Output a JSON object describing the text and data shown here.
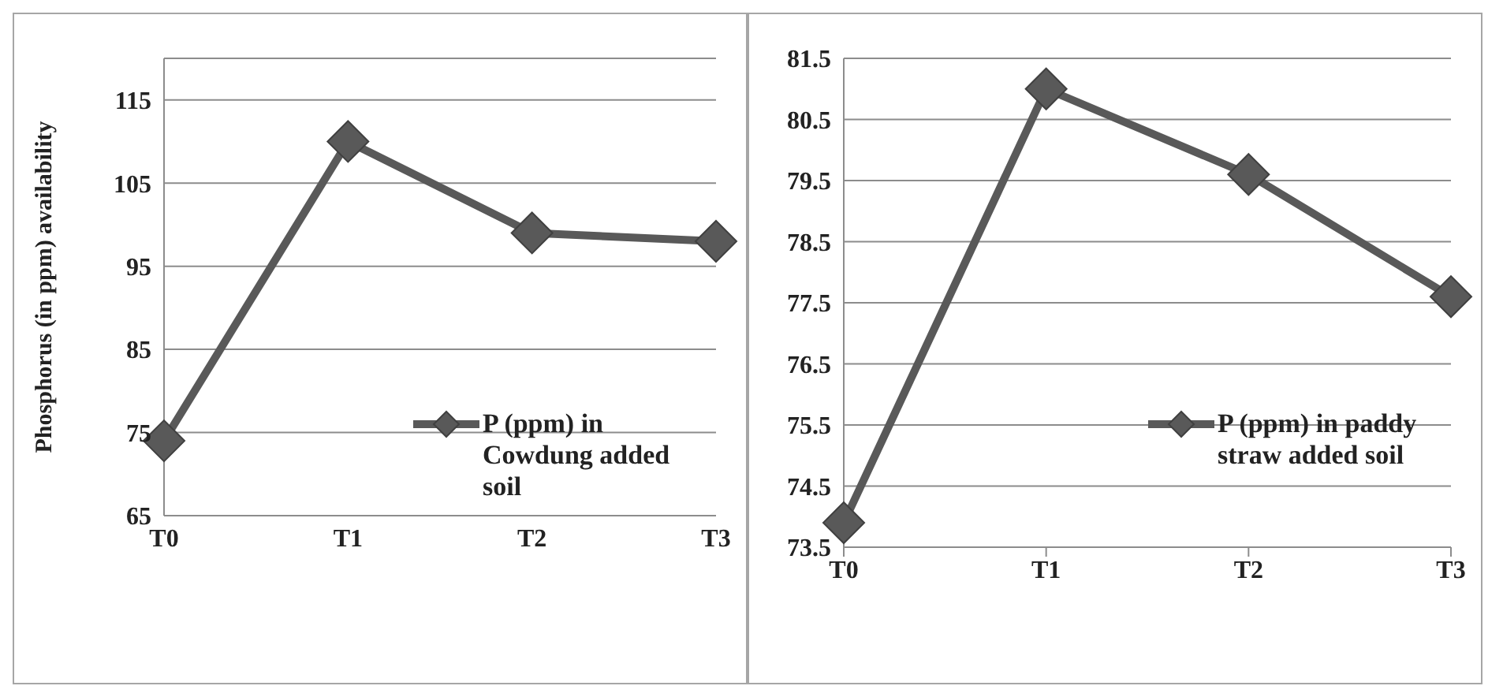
{
  "chart_data": [
    {
      "type": "line",
      "ylabel": "Phosphorus (in ppm) availability",
      "categories": [
        "T0",
        "T1",
        "T2",
        "T3"
      ],
      "series": [
        {
          "name": "P (ppm) in Cowdung added soil",
          "color": "#595959",
          "values": [
            74,
            110,
            99,
            98
          ]
        }
      ],
      "ylim": [
        65,
        120
      ],
      "yticks": [
        65,
        75,
        85,
        95,
        105,
        115
      ],
      "grid": "y",
      "legend": "right",
      "marker": "diamond",
      "line_style": "solid"
    },
    {
      "type": "line",
      "categories": [
        "T0",
        "T1",
        "T2",
        "T3"
      ],
      "series": [
        {
          "name": "P (ppm) in paddy straw added soil",
          "color": "#595959",
          "values": [
            73.9,
            81.0,
            79.6,
            77.6
          ]
        }
      ],
      "ylim": [
        73.5,
        81.5
      ],
      "yticks": [
        73.5,
        74.5,
        75.5,
        76.5,
        77.5,
        78.5,
        79.5,
        80.5,
        81.5
      ],
      "grid": "y",
      "legend": "right",
      "marker": "diamond",
      "line_style": "solid"
    }
  ]
}
